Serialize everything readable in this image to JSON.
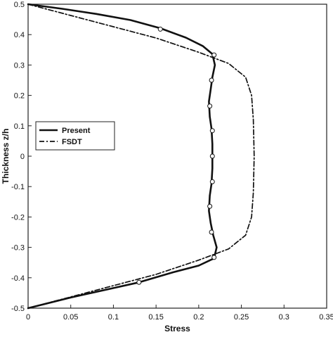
{
  "chart_data": {
    "type": "line",
    "title": "",
    "xlabel": "Stress",
    "ylabel": "Thickness z/h",
    "xlim": [
      0,
      0.35
    ],
    "ylim": [
      -0.5,
      0.5
    ],
    "xticks": [
      0,
      0.05,
      0.1,
      0.15,
      0.2,
      0.25,
      0.3,
      0.35
    ],
    "xtick_labels": [
      "0",
      "0.05",
      "0.1",
      "0.15",
      "0.2",
      "0.25",
      "0.3",
      "0.35"
    ],
    "yticks": [
      -0.5,
      -0.4,
      -0.3,
      -0.2,
      -0.1,
      0,
      0.1,
      0.2,
      0.3,
      0.4,
      0.5
    ],
    "ytick_labels": [
      "-0.5",
      "-0.4",
      "-0.3",
      "-0.2",
      "-0.1",
      "0",
      "0.1",
      "0.2",
      "0.3",
      "0.4",
      "0.5"
    ],
    "grid": false,
    "legend_position": "center-left",
    "series": [
      {
        "name": "Present",
        "style": "solid-with-circle-markers",
        "color": "#111111",
        "points": [
          [
            0.0,
            0.5
          ],
          [
            0.04,
            0.485
          ],
          [
            0.08,
            0.468
          ],
          [
            0.12,
            0.448
          ],
          [
            0.155,
            0.421
          ],
          [
            0.185,
            0.39
          ],
          [
            0.205,
            0.362
          ],
          [
            0.216,
            0.336
          ],
          [
            0.219,
            0.3
          ],
          [
            0.216,
            0.26
          ],
          [
            0.214,
            0.22
          ],
          [
            0.212,
            0.18
          ],
          [
            0.213,
            0.13
          ],
          [
            0.215,
            0.09
          ],
          [
            0.216,
            0.04
          ],
          [
            0.216,
            0.0
          ],
          [
            0.216,
            -0.04
          ],
          [
            0.215,
            -0.09
          ],
          [
            0.213,
            -0.13
          ],
          [
            0.212,
            -0.18
          ],
          [
            0.214,
            -0.22
          ],
          [
            0.217,
            -0.26
          ],
          [
            0.221,
            -0.3
          ],
          [
            0.218,
            -0.336
          ],
          [
            0.2,
            -0.36
          ],
          [
            0.17,
            -0.382
          ],
          [
            0.13,
            -0.415
          ],
          [
            0.09,
            -0.44
          ],
          [
            0.05,
            -0.465
          ],
          [
            0.0,
            -0.5
          ]
        ],
        "markers": [
          [
            0.155,
            0.418
          ],
          [
            0.218,
            0.333
          ],
          [
            0.215,
            0.25
          ],
          [
            0.213,
            0.165
          ],
          [
            0.216,
            0.084
          ],
          [
            0.216,
            0.0
          ],
          [
            0.216,
            -0.084
          ],
          [
            0.213,
            -0.165
          ],
          [
            0.215,
            -0.25
          ],
          [
            0.218,
            -0.333
          ],
          [
            0.13,
            -0.415
          ]
        ]
      },
      {
        "name": "FSDT",
        "style": "dash-dot",
        "color": "#111111",
        "points": [
          [
            0.0,
            0.5
          ],
          [
            0.05,
            0.463
          ],
          [
            0.1,
            0.426
          ],
          [
            0.15,
            0.389
          ],
          [
            0.2,
            0.342
          ],
          [
            0.235,
            0.305
          ],
          [
            0.255,
            0.26
          ],
          [
            0.262,
            0.2
          ],
          [
            0.264,
            0.12
          ],
          [
            0.265,
            0.0
          ],
          [
            0.264,
            -0.12
          ],
          [
            0.262,
            -0.2
          ],
          [
            0.255,
            -0.26
          ],
          [
            0.235,
            -0.305
          ],
          [
            0.2,
            -0.342
          ],
          [
            0.15,
            -0.389
          ],
          [
            0.1,
            -0.426
          ],
          [
            0.05,
            -0.463
          ],
          [
            0.0,
            -0.5
          ]
        ]
      }
    ]
  }
}
